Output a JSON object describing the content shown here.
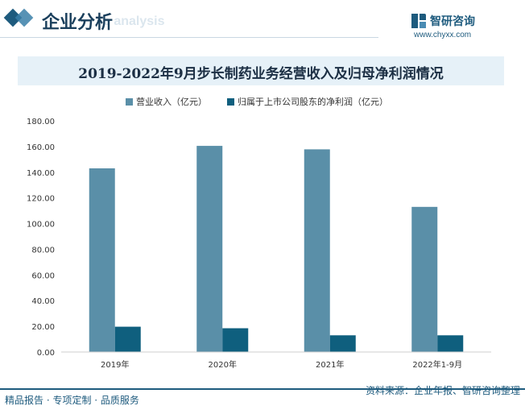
{
  "header": {
    "title": "企业分析",
    "watermark_text": "e analysis",
    "brand_name": "智研咨询",
    "brand_url": "www.chyxx.com"
  },
  "legend": {
    "items": [
      {
        "label": "营业收入（亿元）",
        "color": "#5a8fa8"
      },
      {
        "label": "归属于上市公司股东的净利润（亿元）",
        "color": "#0f5f7e"
      }
    ]
  },
  "footer": {
    "left": "精品报告 · 专项定制 · 品质服务",
    "source": "资料来源：企业年报、智研咨询整理"
  },
  "chart_data": {
    "type": "bar",
    "title": "2019-2022年9月步长制药业务经营收入及归母净利润情况",
    "categories": [
      "2019年",
      "2020年",
      "2021年",
      "2022年1-9月"
    ],
    "series": [
      {
        "name": "营业收入（亿元）",
        "color": "#5a8fa8",
        "values": [
          143,
          160.5,
          157.8,
          113
        ]
      },
      {
        "name": "归属于上市公司股东的净利润（亿元）",
        "color": "#0f5f7e",
        "values": [
          19.7,
          18.5,
          13.0,
          13.0
        ]
      }
    ],
    "ylim": [
      0,
      180
    ],
    "yticks": [
      "0.00",
      "20.00",
      "40.00",
      "60.00",
      "80.00",
      "100.00",
      "120.00",
      "140.00",
      "160.00",
      "180.00"
    ],
    "xlabel": "",
    "ylabel": "",
    "grid": false,
    "legend_position": "top-center"
  }
}
